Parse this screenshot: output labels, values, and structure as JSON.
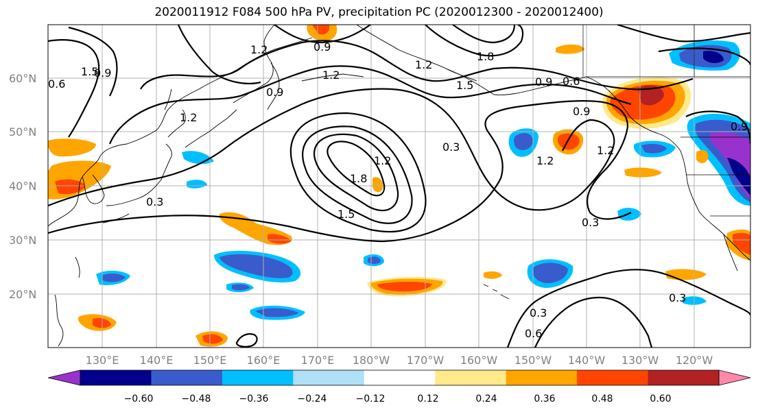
{
  "title": "2020011912 F084 500 hPa PV, precipitation PC (2020012300 - 2020012400)",
  "lat_labels": [
    "60°N",
    "50°N",
    "40°N",
    "30°N",
    "20°N"
  ],
  "lon_labels": [
    "130°E",
    "140°E",
    "150°E",
    "160°E",
    "170°E",
    "180°W",
    "170°W",
    "160°W",
    "150°W",
    "140°W",
    "130°W",
    "120°W"
  ],
  "contour_labels": [
    "0.9",
    "1.2",
    "1.2",
    "1.5",
    "1.8",
    "1.8",
    "1.2",
    "1.5",
    "0.3",
    "1.2",
    "0.9",
    "0.6",
    "0.9",
    "1.2",
    "0.3",
    "0.3",
    "0.6",
    "0.3",
    "0.3",
    "1.2",
    "0.9",
    "1.2",
    "1.5",
    "0.9",
    "0.9",
    "0.6"
  ],
  "colorbar": {
    "ticks": [
      "−0.60",
      "−0.48",
      "−0.36",
      "−0.24",
      "−0.12",
      "0.12",
      "0.24",
      "0.36",
      "0.48",
      "0.60"
    ],
    "colors": [
      "#9932cc",
      "#00008b",
      "#3a5bcc",
      "#00bfff",
      "#b0e0f8",
      "#ffffff",
      "#ffe98a",
      "#ffa500",
      "#ff4500",
      "#b22222",
      "#ff88aa"
    ]
  },
  "colors": {
    "coast": "#000000",
    "grid": "#b0b0b0",
    "contour": "#000000"
  }
}
